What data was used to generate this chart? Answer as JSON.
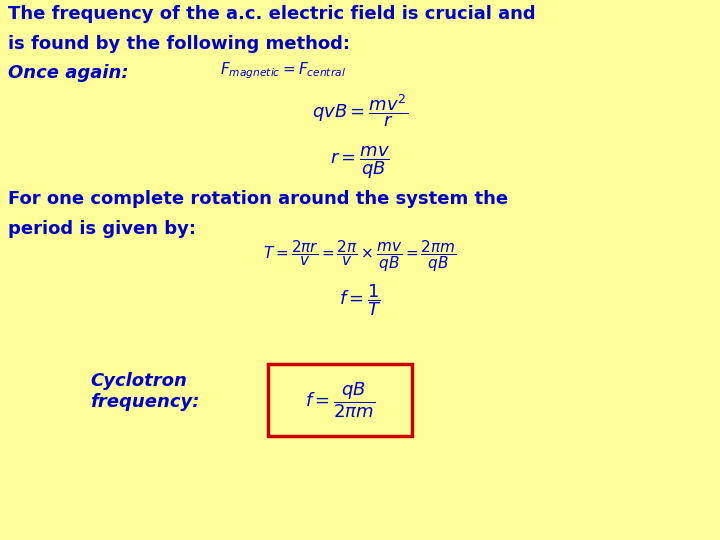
{
  "background_color": "#ffff99",
  "text_color": "#0000cc",
  "title_line1": "The frequency of the a.c. electric field is crucial and",
  "title_line2": "is found by the following method:",
  "once_again": "Once again:",
  "eq1": "$F_{magnetic} = F_{central}$",
  "eq2": "$qvB = \\dfrac{mv^2}{r}$",
  "eq3": "$r = \\dfrac{mv}{qB}$",
  "text2_line1": "For one complete rotation around the system the",
  "text2_line2": "period is given by:",
  "eq4": "$T = \\dfrac{2\\pi r}{v} = \\dfrac{2\\pi}{v} \\times \\dfrac{mv}{qB} = \\dfrac{2\\pi m}{qB}$",
  "eq5": "$f = \\dfrac{1}{T}$",
  "label_cyclotron": "Cyclotron\nfrequency:",
  "eq_final": "$f = \\dfrac{qB}{2\\pi m}$",
  "box_color": "#cc0000",
  "font_size_text": 13,
  "font_size_eq": 13,
  "font_size_small_eq": 11,
  "font_size_eq4": 11
}
